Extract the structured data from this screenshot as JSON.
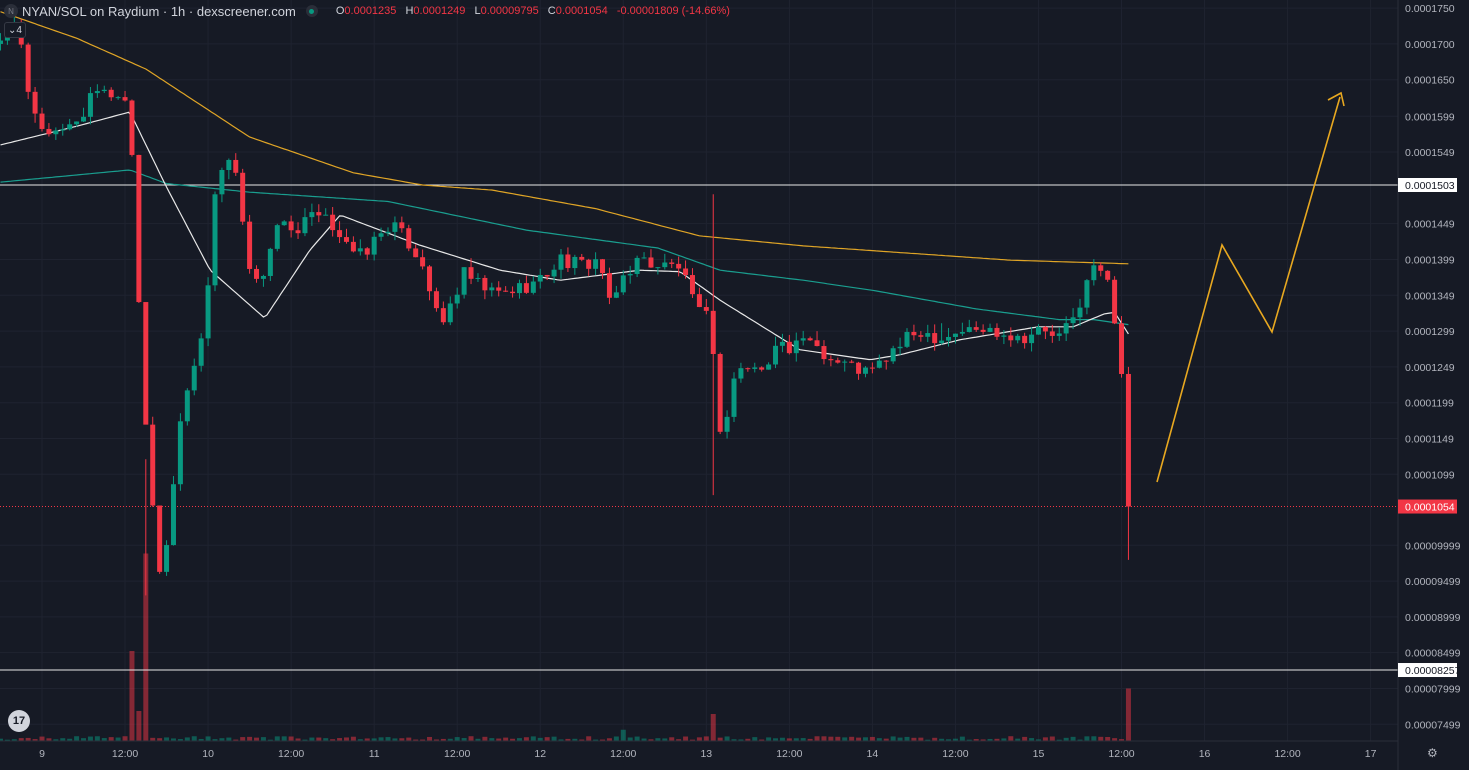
{
  "header": {
    "title": "NYAN/SOL on Raydium · 1h · dexscreener.com",
    "ohlc": {
      "o_label": "O",
      "o": "0.0001235",
      "h_label": "H",
      "h": "0.0001249",
      "l_label": "L",
      "l": "0.00009795",
      "c_label": "C",
      "c": "0.0001054",
      "change": "-0.00001809 (-14.66%)"
    },
    "indicators_count": "4",
    "logo_letter": "N"
  },
  "price_axis": {
    "labels": [
      "0.0001750",
      "0.0001700",
      "0.0001650",
      "0.0001599",
      "0.0001549",
      "0.0001449",
      "0.0001399",
      "0.0001349",
      "0.0001299",
      "0.0001249",
      "0.0001199",
      "0.0001149",
      "0.0001099",
      "0.00009999",
      "0.00009499",
      "0.00008999",
      "0.00008499",
      "0.00007999",
      "0.00007499"
    ],
    "label_values": [
      175.0,
      170.0,
      165.0,
      159.9,
      154.9,
      144.9,
      139.9,
      134.9,
      129.9,
      124.9,
      119.9,
      114.9,
      109.9,
      99.99,
      94.99,
      89.99,
      84.99,
      79.99,
      74.99
    ],
    "level_high": "0.0001503",
    "level_high_value": 150.3,
    "level_low": "0.00008257",
    "level_low_value": 82.57,
    "current_price": "0.0001054",
    "current_value": 105.4
  },
  "time_axis": {
    "labels": [
      "9",
      "12:00",
      "10",
      "12:00",
      "11",
      "12:00",
      "12",
      "12:00",
      "13",
      "12:00",
      "14",
      "12:00",
      "15",
      "12:00",
      "16",
      "12:00",
      "17"
    ],
    "hours": [
      0,
      12,
      24,
      36,
      48,
      60,
      72,
      84,
      96,
      108,
      120,
      132,
      144,
      156,
      168,
      180,
      192
    ]
  },
  "colors": {
    "up": "#089981",
    "down": "#f23645",
    "ma_long": "#e0a526",
    "ma_mid": "#1a9e8f",
    "ma_short": "#e8e8e8",
    "annotation": "#e8a820"
  },
  "chart_data": {
    "type": "candlestick",
    "unit": "price x 1e-6 SOL",
    "close_anchors": [
      [
        -6,
        170
      ],
      [
        -3.2,
        172
      ],
      [
        -1.7,
        160
      ],
      [
        0.4,
        158
      ],
      [
        2.6,
        157
      ],
      [
        5.5,
        160
      ],
      [
        7.7,
        163
      ],
      [
        11.3,
        163
      ],
      [
        12.7,
        161
      ],
      [
        14.2,
        130
      ],
      [
        15.6,
        108
      ],
      [
        17.1,
        96
      ],
      [
        18.5,
        103
      ],
      [
        19.9,
        118
      ],
      [
        22.1,
        126
      ],
      [
        23.6,
        132
      ],
      [
        25,
        148
      ],
      [
        26.4,
        154
      ],
      [
        28.6,
        152
      ],
      [
        29.3,
        140
      ],
      [
        31.5,
        136
      ],
      [
        32.9,
        142
      ],
      [
        35.1,
        146
      ],
      [
        36.6,
        143
      ],
      [
        38.7,
        146
      ],
      [
        41.6,
        145
      ],
      [
        43.8,
        143
      ],
      [
        45.2,
        140
      ],
      [
        46.7,
        141
      ],
      [
        50.3,
        145
      ],
      [
        53.2,
        142
      ],
      [
        55.3,
        139
      ],
      [
        57.5,
        130
      ],
      [
        59.7,
        135
      ],
      [
        61.1,
        138
      ],
      [
        63.3,
        136
      ],
      [
        66.2,
        135
      ],
      [
        69.1,
        136
      ],
      [
        72,
        137
      ],
      [
        74.9,
        140
      ],
      [
        77.7,
        139
      ],
      [
        80.6,
        140
      ],
      [
        82.1,
        133
      ],
      [
        84.2,
        138
      ],
      [
        86.4,
        140
      ],
      [
        89.3,
        139
      ],
      [
        92.2,
        139
      ],
      [
        93.6,
        135
      ],
      [
        95.1,
        132
      ],
      [
        96.2,
        134
      ],
      [
        97.4,
        122
      ],
      [
        98.3,
        114
      ],
      [
        100.1,
        124
      ],
      [
        102.3,
        125
      ],
      [
        104.5,
        124
      ],
      [
        105.9,
        129
      ],
      [
        108.1,
        127
      ],
      [
        111,
        129
      ],
      [
        113.9,
        126
      ],
      [
        116.8,
        125
      ],
      [
        119.7,
        124
      ],
      [
        121.8,
        126
      ],
      [
        124,
        128
      ],
      [
        126.9,
        130
      ],
      [
        129.8,
        129
      ],
      [
        132.7,
        130
      ],
      [
        135.5,
        130
      ],
      [
        138.4,
        130
      ],
      [
        141.3,
        129
      ],
      [
        144.2,
        130
      ],
      [
        147.1,
        129
      ],
      [
        149.3,
        132
      ],
      [
        150.7,
        136
      ],
      [
        152.2,
        139
      ],
      [
        153.6,
        138
      ],
      [
        154.6,
        134
      ],
      [
        155.8,
        128
      ],
      [
        157,
        105.4
      ]
    ],
    "wick_overrides": [
      [
        97,
        149,
        107
      ],
      [
        157,
        124.9,
        97.95
      ],
      [
        15,
        112,
        93
      ],
      [
        17,
        101,
        96
      ],
      [
        130,
        131,
        128
      ]
    ],
    "volume_spikes": [
      [
        13,
        12
      ],
      [
        15,
        25
      ],
      [
        14,
        4
      ],
      [
        97,
        3.6
      ],
      [
        84,
        1.5
      ],
      [
        157,
        7
      ]
    ],
    "ma_long": [
      [
        -6,
        174.5
      ],
      [
        5,
        170.8
      ],
      [
        15,
        166.5
      ],
      [
        30,
        157
      ],
      [
        45,
        152
      ],
      [
        55,
        150.3
      ],
      [
        65,
        149.6
      ],
      [
        80,
        147
      ],
      [
        95,
        143.2
      ],
      [
        110,
        141.8
      ],
      [
        125,
        140.8
      ],
      [
        140,
        139.8
      ],
      [
        157,
        139.3
      ]
    ],
    "ma_mid": [
      [
        -6,
        150.7
      ],
      [
        12.7,
        152.4
      ],
      [
        18,
        150.5
      ],
      [
        30,
        149.3
      ],
      [
        50,
        148
      ],
      [
        70,
        144
      ],
      [
        89,
        141.5
      ],
      [
        98,
        138.4
      ],
      [
        110,
        137
      ],
      [
        120,
        135.6
      ],
      [
        135,
        133
      ],
      [
        147,
        131.5
      ],
      [
        152,
        131.5
      ],
      [
        157,
        130.8
      ]
    ],
    "ma_short": [
      [
        -6,
        155.9
      ],
      [
        5,
        158.5
      ],
      [
        12.7,
        160.5
      ],
      [
        18,
        150
      ],
      [
        24.3,
        138.4
      ],
      [
        32.2,
        131.7
      ],
      [
        38.7,
        141.2
      ],
      [
        43.1,
        146.1
      ],
      [
        54.6,
        141.9
      ],
      [
        66.2,
        138.4
      ],
      [
        74.9,
        137
      ],
      [
        86.4,
        138.4
      ],
      [
        92.2,
        138.2
      ],
      [
        98,
        134.2
      ],
      [
        109.5,
        127.3
      ],
      [
        119.7,
        125.9
      ],
      [
        124,
        126.6
      ],
      [
        132.7,
        128.7
      ],
      [
        144,
        130.5
      ],
      [
        149,
        130.5
      ],
      [
        153.5,
        132.3
      ],
      [
        155,
        132.5
      ],
      [
        157,
        129.5
      ]
    ]
  }
}
